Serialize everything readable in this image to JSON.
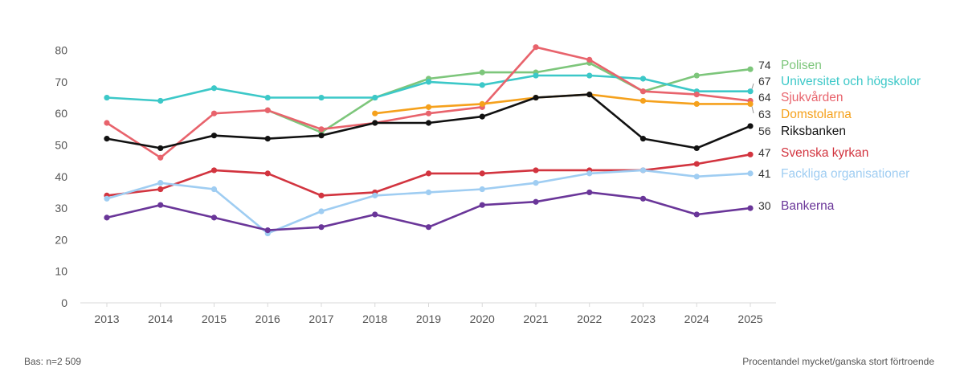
{
  "chart_data": {
    "type": "line",
    "title": "",
    "xlabel": "",
    "ylabel": "",
    "ylim": [
      0,
      80
    ],
    "yticks": [
      0,
      10,
      20,
      30,
      40,
      50,
      60,
      70,
      80
    ],
    "grid": false,
    "categories": [
      "2013",
      "2014",
      "2015",
      "2016",
      "2017",
      "2018",
      "2019",
      "2020",
      "2021",
      "2022",
      "2023",
      "2024",
      "2025"
    ],
    "series": [
      {
        "name": "Polisen",
        "color": "#7dc67b",
        "end_label": "74",
        "values": [
          null,
          null,
          null,
          61,
          54,
          65,
          71,
          73,
          73,
          76,
          67,
          72,
          74
        ]
      },
      {
        "name": "Universitet och högskolor",
        "color": "#3cc8c8",
        "end_label": "67",
        "values": [
          65,
          64,
          68,
          65,
          65,
          65,
          70,
          69,
          72,
          72,
          71,
          67,
          67
        ]
      },
      {
        "name": "Sjukvården",
        "color": "#e8636c",
        "end_label": "64",
        "values": [
          57,
          46,
          60,
          61,
          55,
          57,
          60,
          62,
          81,
          77,
          67,
          66,
          64
        ]
      },
      {
        "name": "Domstolarna",
        "color": "#f5a11c",
        "end_label": "63",
        "values": [
          null,
          null,
          null,
          null,
          null,
          60,
          62,
          63,
          65,
          66,
          64,
          63,
          63
        ]
      },
      {
        "name": "Riksbanken",
        "color": "#111111",
        "end_label": "56",
        "values": [
          52,
          49,
          53,
          52,
          53,
          57,
          57,
          59,
          65,
          66,
          52,
          49,
          56
        ]
      },
      {
        "name": "Svenska kyrkan",
        "color": "#d2343f",
        "end_label": "47",
        "values": [
          34,
          36,
          42,
          41,
          34,
          35,
          41,
          41,
          42,
          42,
          42,
          44,
          47
        ]
      },
      {
        "name": "Fackliga organisationer",
        "color": "#9fcdf2",
        "end_label": "41",
        "values": [
          33,
          38,
          36,
          22,
          29,
          34,
          35,
          36,
          38,
          41,
          42,
          40,
          41
        ]
      },
      {
        "name": "Bankerna",
        "color": "#6a3699",
        "end_label": "30",
        "values": [
          27,
          31,
          27,
          23,
          24,
          28,
          24,
          31,
          32,
          35,
          33,
          28,
          30
        ]
      }
    ]
  },
  "footer": {
    "base_note": "Bas: n=2 509",
    "measure_note": "Procentandel mycket/ganska stort förtroende"
  }
}
